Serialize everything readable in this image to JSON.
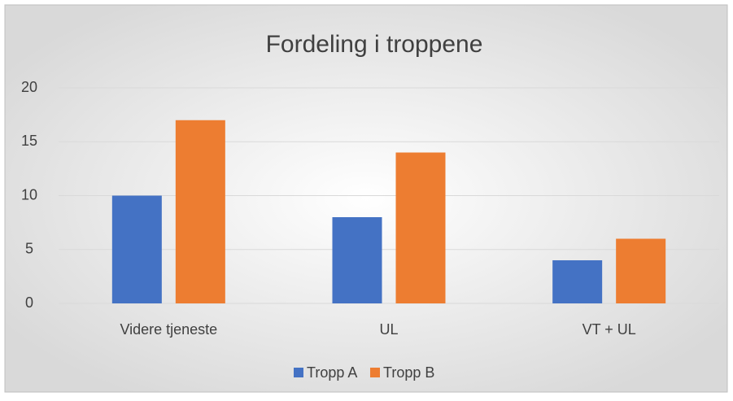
{
  "chart_data": {
    "type": "bar",
    "title": "Fordeling i troppene",
    "categories": [
      "Videre tjeneste",
      "UL",
      "VT + UL"
    ],
    "series": [
      {
        "name": "Tropp A",
        "color": "#4472c4",
        "values": [
          10,
          8,
          4
        ]
      },
      {
        "name": "Tropp B",
        "color": "#ed7d31",
        "values": [
          17,
          14,
          6
        ]
      }
    ],
    "ylim": [
      0,
      20
    ],
    "yticks": [
      0,
      5,
      10,
      15,
      20
    ],
    "grid": true,
    "legend": "bottom"
  }
}
